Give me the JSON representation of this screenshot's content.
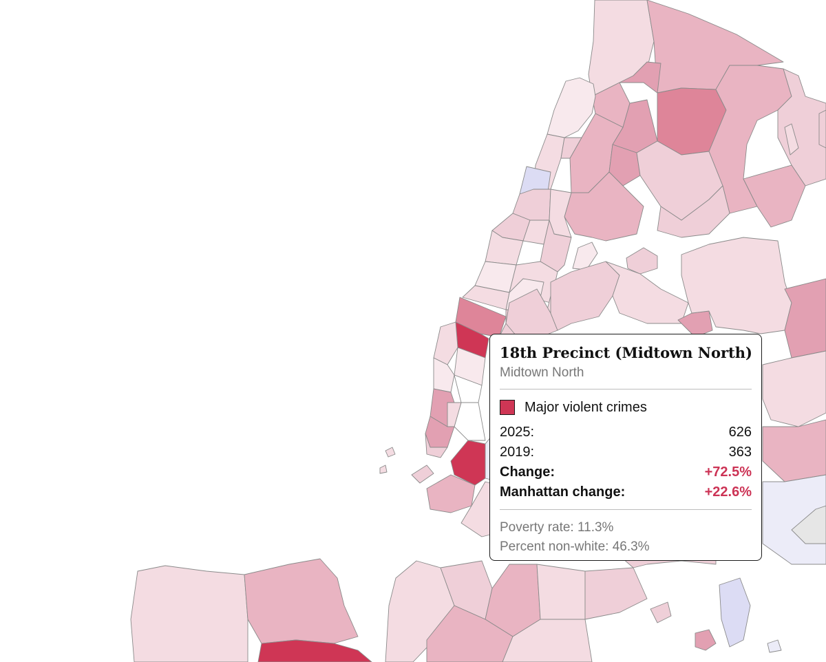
{
  "tooltip": {
    "title": "18th Precinct (Midtown North)",
    "subtitle": "Midtown North",
    "legend": {
      "label": "Major violent crimes",
      "color": "#cf3655"
    },
    "rows": [
      {
        "label": "2025:",
        "value": "626"
      },
      {
        "label": "2019:",
        "value": "363"
      }
    ],
    "change": {
      "label": "Change:",
      "value": "+72.5%"
    },
    "borough_change": {
      "label": "Manhattan change:",
      "value": "+22.6%"
    },
    "poverty": "Poverty rate: 11.3%",
    "nonwhite": "Percent non-white: 46.3%"
  },
  "map": {
    "highlighted_precinct": "18th Precinct (Midtown North)",
    "colors": {
      "very_light": "#f8e9ed",
      "light": "#f4dce2",
      "medium_light": "#efcfd8",
      "medium": "#e9b4c2",
      "medium_dark": "#e2a0b2",
      "dark": "#de8599",
      "darkest": "#cf3655",
      "decrease": "#ececf8",
      "decrease_medium": "#dcdcf4",
      "no_data": "#e6e6e6"
    }
  }
}
